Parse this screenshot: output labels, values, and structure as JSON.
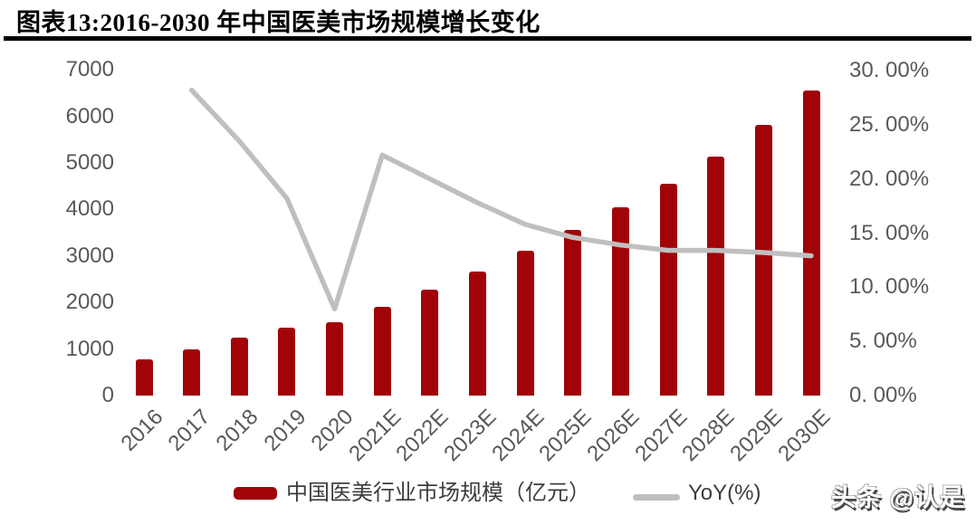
{
  "header": {
    "title": "图表13:2016-2030 年中国医美市场规模增长变化"
  },
  "chart_data": {
    "type": "bar",
    "title": "图表13:2016-2030 年中国医美市场规模增长变化",
    "categories": [
      "2016",
      "2017",
      "2018",
      "2019",
      "2020",
      "2021E",
      "2022E",
      "2023E",
      "2024E",
      "2025E",
      "2026E",
      "2027E",
      "2028E",
      "2029E",
      "2030E"
    ],
    "series": [
      {
        "name": "中国医美行业市场规模（亿元）",
        "type": "bar",
        "yaxis": "left",
        "color": "#A00408",
        "values": [
          776,
          1000,
          1240,
          1450,
          1580,
          1915,
          2280,
          2665,
          3115,
          3565,
          4045,
          4545,
          5140,
          5815,
          6550
        ]
      },
      {
        "name": "YoY(%)",
        "type": "line",
        "yaxis": "right",
        "color": "#BFBFBF",
        "values": [
          null,
          28.2,
          23.5,
          18.2,
          8.0,
          22.2,
          20.0,
          17.8,
          15.8,
          14.6,
          13.9,
          13.4,
          13.4,
          13.2,
          12.9
        ]
      }
    ],
    "left_axis": {
      "min": 0,
      "max": 7000,
      "step": 1000,
      "labels": [
        "0",
        "1000",
        "2000",
        "3000",
        "4000",
        "5000",
        "6000",
        "7000"
      ]
    },
    "right_axis": {
      "min": 0,
      "max": 30,
      "step": 5,
      "labels": [
        "0. 00%",
        "5. 00%",
        "10. 00%",
        "15. 00%",
        "20. 00%",
        "25. 00%",
        "30. 00%"
      ]
    },
    "xlabel": "",
    "ylabel": "",
    "grid": false,
    "legend_position": "bottom"
  },
  "watermark": {
    "text": "头条 @认是"
  },
  "colors": {
    "bar": "#A00408",
    "line": "#BFBFBF",
    "axis_text": "#595959",
    "legend_text": "#3D3D3D",
    "title_text": "#000000",
    "rule": "#000000",
    "background": "#FFFFFF"
  }
}
